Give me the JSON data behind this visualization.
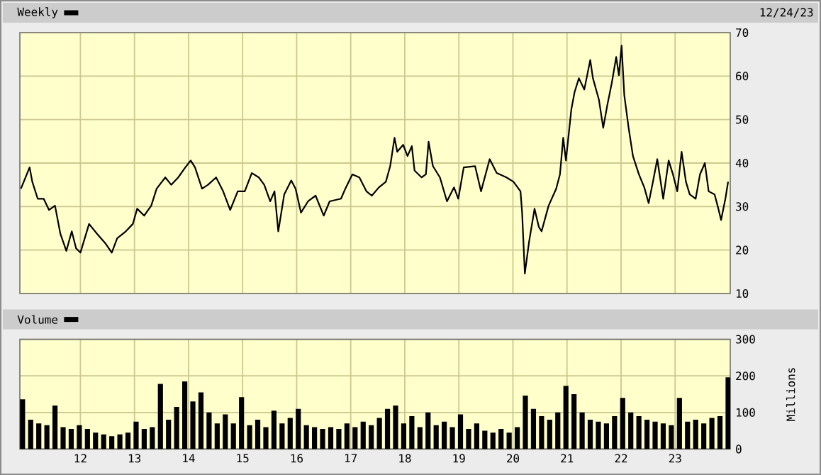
{
  "chart_data": [
    {
      "type": "line",
      "annotations": [
        "12/24/23"
      ],
      "legend": "top left",
      "grid": true,
      "tick_labels": "y",
      "xlim": [
        2010.88,
        2024.02
      ],
      "ylim": [
        10,
        70
      ],
      "yticks": [
        10,
        20,
        30,
        40,
        50,
        60,
        70
      ],
      "xticks": [
        {
          "value": 2012,
          "label": null
        },
        {
          "value": 2013,
          "label": null
        },
        {
          "value": 2014,
          "label": null
        },
        {
          "value": 2015,
          "label": null
        },
        {
          "value": 2016,
          "label": null
        },
        {
          "value": 2017,
          "label": null
        },
        {
          "value": 2018,
          "label": null
        },
        {
          "value": 2019,
          "label": null
        },
        {
          "value": 2020,
          "label": null
        },
        {
          "value": 2021,
          "label": null
        },
        {
          "value": 2022,
          "label": null
        },
        {
          "value": 2023,
          "label": null
        }
      ],
      "series": [
        {
          "name": "Weekly",
          "color": "#000000",
          "x": [
            2010.9,
            2011.06,
            2011.11,
            2011.21,
            2011.32,
            2011.42,
            2011.53,
            2011.63,
            2011.74,
            2011.84,
            2011.92,
            2012.0,
            2012.16,
            2012.31,
            2012.47,
            2012.58,
            2012.68,
            2012.84,
            2012.97,
            2013.05,
            2013.18,
            2013.31,
            2013.41,
            2013.57,
            2013.68,
            2013.81,
            2013.94,
            2014.04,
            2014.12,
            2014.25,
            2014.36,
            2014.51,
            2014.64,
            2014.77,
            2014.91,
            2015.04,
            2015.17,
            2015.3,
            2015.4,
            2015.51,
            2015.59,
            2015.66,
            2015.77,
            2015.9,
            2015.98,
            2016.08,
            2016.21,
            2016.35,
            2016.5,
            2016.61,
            2016.82,
            2016.9,
            2017.03,
            2017.16,
            2017.29,
            2017.39,
            2017.52,
            2017.65,
            2017.73,
            2017.81,
            2017.86,
            2017.97,
            2018.05,
            2018.13,
            2018.18,
            2018.31,
            2018.39,
            2018.44,
            2018.52,
            2018.65,
            2018.78,
            2018.91,
            2018.99,
            2019.09,
            2019.3,
            2019.41,
            2019.57,
            2019.7,
            2019.88,
            2020.01,
            2020.14,
            2020.17,
            2020.22,
            2020.3,
            2020.4,
            2020.48,
            2020.53,
            2020.66,
            2020.8,
            2020.87,
            2020.93,
            2020.98,
            2021.08,
            2021.14,
            2021.22,
            2021.32,
            2021.43,
            2021.48,
            2021.59,
            2021.67,
            2021.75,
            2021.83,
            2021.91,
            2021.96,
            2022.01,
            2022.06,
            2022.14,
            2022.22,
            2022.33,
            2022.43,
            2022.51,
            2022.59,
            2022.67,
            2022.78,
            2022.88,
            2022.96,
            2023.04,
            2023.12,
            2023.2,
            2023.27,
            2023.38,
            2023.46,
            2023.55,
            2023.62,
            2023.73,
            2023.8,
            2023.85,
            2023.93,
            2023.98
          ],
          "values": [
            34.1,
            39,
            35.7,
            31.8,
            31.8,
            29.2,
            30.2,
            23.7,
            19.8,
            24.3,
            20.4,
            19.4,
            26,
            23.7,
            21.4,
            19.4,
            22.7,
            24.3,
            26,
            29.5,
            27.9,
            30.2,
            34.1,
            36.7,
            35,
            36.7,
            39,
            40.6,
            39,
            34.1,
            35,
            36.7,
            33.5,
            29.2,
            33.5,
            33.5,
            37.7,
            36.7,
            35,
            31.2,
            33.5,
            24.3,
            32.8,
            36,
            34.1,
            28.6,
            31.2,
            32.5,
            27.9,
            31.2,
            31.8,
            34.1,
            37.4,
            36.7,
            33.5,
            32.5,
            34.4,
            35.7,
            39.3,
            45.8,
            42.6,
            44.2,
            41.6,
            43.9,
            38.3,
            36.7,
            37.4,
            44.9,
            39.3,
            36.7,
            31.2,
            34.4,
            31.8,
            39,
            39.3,
            33.5,
            40.9,
            37.7,
            36.7,
            35.7,
            33.5,
            28.6,
            14.6,
            22,
            29.5,
            25.3,
            24.3,
            30.2,
            34.1,
            37.4,
            45.8,
            40.6,
            52.3,
            56.3,
            59.5,
            56.9,
            63.7,
            59.5,
            54.6,
            48.1,
            53.6,
            58.5,
            64.4,
            60.2,
            67,
            55.6,
            48.1,
            41.6,
            37.4,
            34.4,
            30.8,
            35.7,
            40.9,
            31.8,
            40.6,
            37.4,
            33.5,
            42.6,
            35.7,
            32.8,
            31.8,
            37.4,
            40,
            33.5,
            32.8,
            29.5,
            26.9,
            31.8,
            35.7
          ]
        }
      ]
    },
    {
      "type": "bar",
      "legend": "top left",
      "grid": true,
      "ylabel": "Millions",
      "xlim": [
        2010.88,
        2024.02
      ],
      "ylim": [
        0,
        300
      ],
      "yticks": [
        0,
        100,
        200,
        300
      ],
      "xticks": [
        {
          "value": 2012,
          "label": "12"
        },
        {
          "value": 2013,
          "label": "13"
        },
        {
          "value": 2014,
          "label": "14"
        },
        {
          "value": 2015,
          "label": "15"
        },
        {
          "value": 2016,
          "label": "16"
        },
        {
          "value": 2017,
          "label": "17"
        },
        {
          "value": 2018,
          "label": "18"
        },
        {
          "value": 2019,
          "label": "19"
        },
        {
          "value": 2020,
          "label": "20"
        },
        {
          "value": 2021,
          "label": "21"
        },
        {
          "value": 2022,
          "label": "22"
        },
        {
          "value": 2023,
          "label": "23"
        }
      ],
      "x": [
        2010.93,
        2011.08,
        2011.23,
        2011.38,
        2011.53,
        2011.68,
        2011.83,
        2011.98,
        2012.13,
        2012.28,
        2012.43,
        2012.58,
        2012.73,
        2012.88,
        2013.03,
        2013.18,
        2013.33,
        2013.48,
        2013.63,
        2013.78,
        2013.93,
        2014.08,
        2014.23,
        2014.38,
        2014.53,
        2014.68,
        2014.83,
        2014.98,
        2015.13,
        2015.28,
        2015.43,
        2015.58,
        2015.73,
        2015.88,
        2016.03,
        2016.18,
        2016.33,
        2016.48,
        2016.63,
        2016.78,
        2016.93,
        2017.08,
        2017.23,
        2017.38,
        2017.53,
        2017.68,
        2017.83,
        2017.98,
        2018.13,
        2018.28,
        2018.43,
        2018.58,
        2018.73,
        2018.88,
        2019.03,
        2019.18,
        2019.33,
        2019.48,
        2019.63,
        2019.78,
        2019.93,
        2020.08,
        2020.23,
        2020.38,
        2020.53,
        2020.68,
        2020.83,
        2020.98,
        2021.13,
        2021.28,
        2021.43,
        2021.58,
        2021.73,
        2021.88,
        2022.03,
        2022.18,
        2022.33,
        2022.48,
        2022.63,
        2022.78,
        2022.93,
        2023.08,
        2023.23,
        2023.38,
        2023.53,
        2023.68,
        2023.83,
        2023.98
      ],
      "series": [
        {
          "name": "Volume",
          "color": "#000000",
          "values": [
            136,
            80,
            70,
            65,
            119,
            60,
            55,
            65,
            55,
            45,
            40,
            35,
            40,
            45,
            75,
            55,
            60,
            178,
            80,
            115,
            185,
            130,
            155,
            100,
            70,
            95,
            70,
            142,
            65,
            80,
            60,
            105,
            70,
            85,
            110,
            65,
            60,
            55,
            60,
            55,
            70,
            60,
            75,
            65,
            85,
            110,
            119,
            70,
            90,
            60,
            100,
            65,
            75,
            60,
            95,
            55,
            70,
            50,
            45,
            55,
            45,
            60,
            146,
            110,
            90,
            80,
            100,
            173,
            150,
            100,
            80,
            75,
            70,
            90,
            140,
            100,
            90,
            80,
            75,
            70,
            65,
            140,
            75,
            80,
            70,
            85,
            90,
            196
          ]
        }
      ]
    }
  ]
}
